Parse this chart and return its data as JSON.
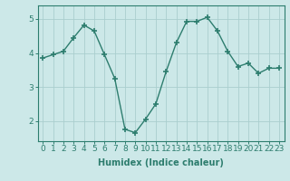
{
  "x": [
    0,
    1,
    2,
    3,
    4,
    5,
    6,
    7,
    8,
    9,
    10,
    11,
    12,
    13,
    14,
    15,
    16,
    17,
    18,
    19,
    20,
    21,
    22,
    23
  ],
  "y": [
    3.85,
    3.95,
    4.05,
    4.45,
    4.82,
    4.65,
    3.95,
    3.25,
    1.75,
    1.65,
    2.05,
    2.5,
    3.45,
    4.3,
    4.93,
    4.93,
    5.05,
    4.65,
    4.05,
    3.6,
    3.7,
    3.4,
    3.55,
    3.55
  ],
  "line_color": "#2d7d6e",
  "marker": "+",
  "marker_size": 4,
  "marker_lw": 1.2,
  "bg_color": "#cce8e8",
  "grid_color": "#aacece",
  "xlabel": "Humidex (Indice chaleur)",
  "ylim": [
    1.4,
    5.4
  ],
  "xlim": [
    -0.5,
    23.5
  ],
  "yticks": [
    2,
    3,
    4,
    5
  ],
  "xticks": [
    0,
    1,
    2,
    3,
    4,
    5,
    6,
    7,
    8,
    9,
    10,
    11,
    12,
    13,
    14,
    15,
    16,
    17,
    18,
    19,
    20,
    21,
    22,
    23
  ],
  "font_color": "#2d7d6e",
  "axis_color": "#2d7d6e",
  "label_fontsize": 7,
  "tick_fontsize": 6.5,
  "linewidth": 1.0
}
